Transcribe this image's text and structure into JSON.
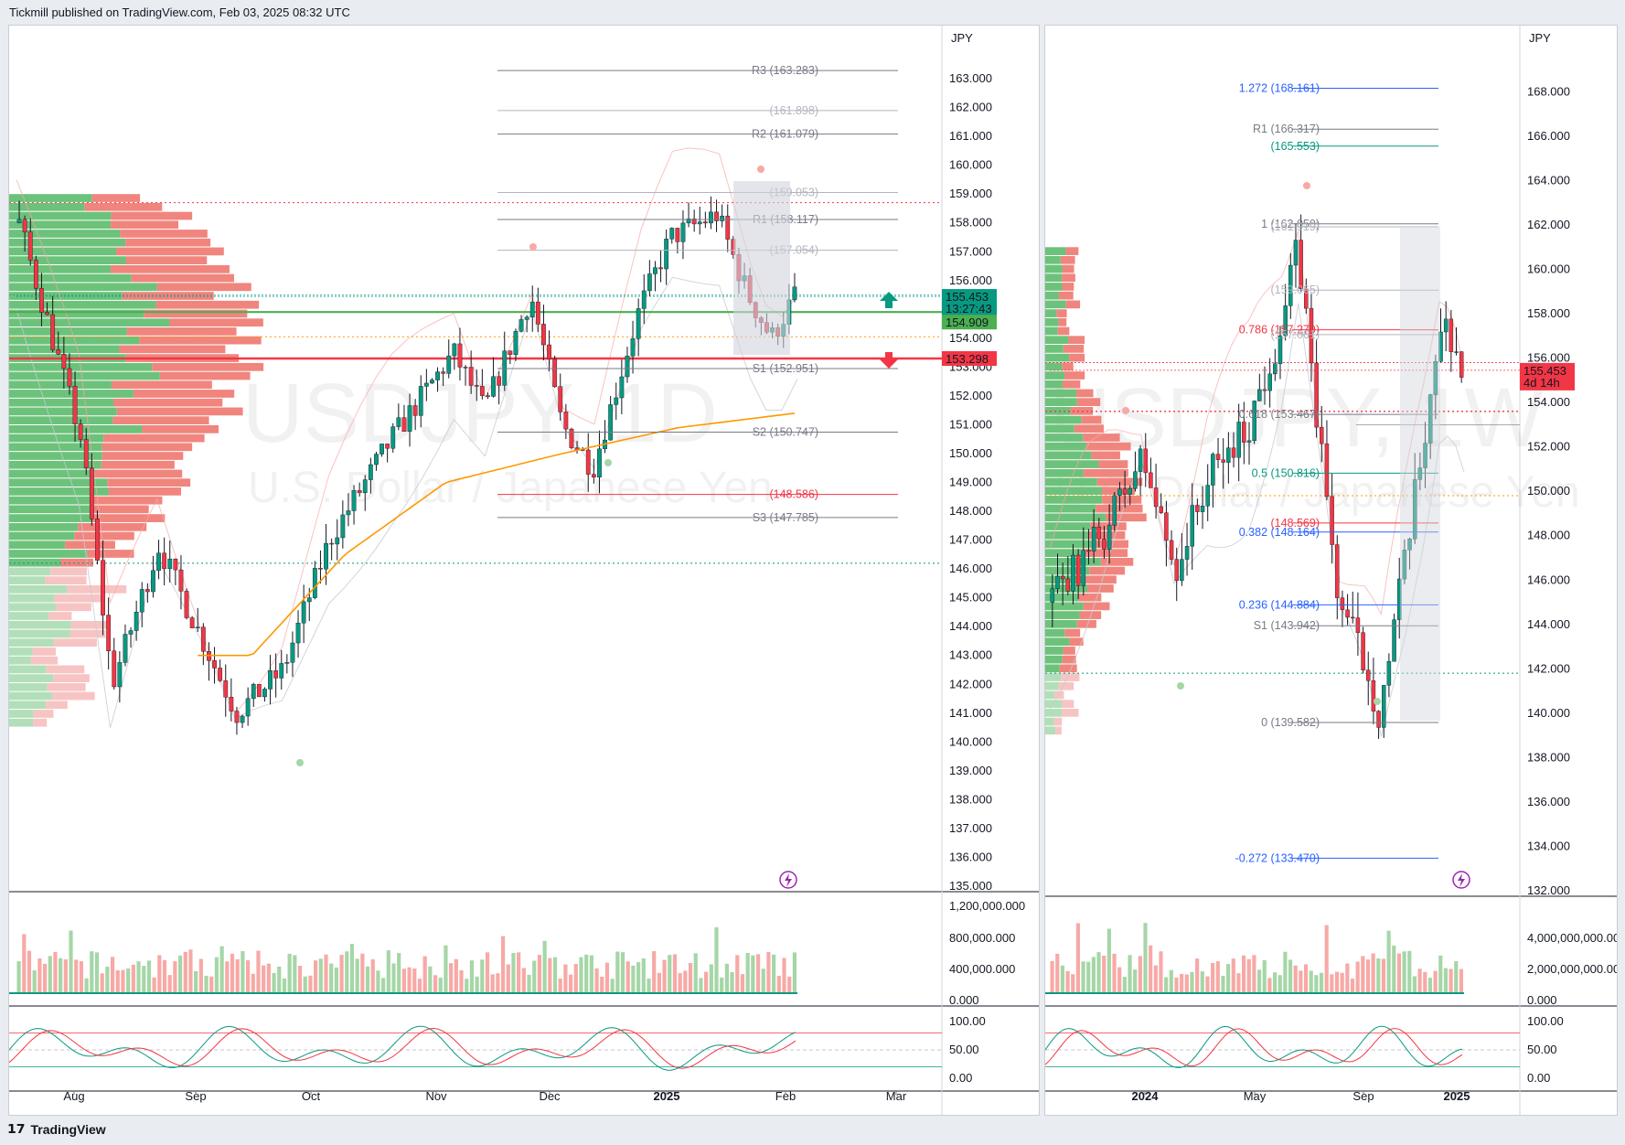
{
  "header": {
    "published": "Tickmill published on TradingView.com, Feb 03, 2025 08:32 UTC"
  },
  "footer": {
    "brand": "TradingView"
  },
  "left_chart": {
    "symbol_watermark": "USDJPY, 1D",
    "name_watermark": "U.S. Dollar / Japanese Yen",
    "currency": "JPY",
    "price_ticks": [
      "163.000",
      "162.000",
      "161.000",
      "160.000",
      "159.000",
      "158.000",
      "157.000",
      "156.000",
      "155.000",
      "154.000",
      "153.000",
      "152.000",
      "151.000",
      "150.000",
      "149.000",
      "148.000",
      "147.000",
      "146.000",
      "145.000",
      "144.000",
      "143.000",
      "142.000",
      "141.000",
      "140.000",
      "139.000",
      "138.000",
      "137.000",
      "136.000",
      "135.000"
    ],
    "volume_ticks": [
      "1,200,000.000",
      "800,000.000",
      "400,000.000",
      "0.000"
    ],
    "osc_ticks": [
      "100.00",
      "50.00",
      "0.00"
    ],
    "time_ticks": [
      "Aug",
      "Sep",
      "Oct",
      "Nov",
      "Dec",
      "2025",
      "Feb",
      "Mar"
    ],
    "price_badges": {
      "last": "155.453",
      "countdown": "13:27:43",
      "level_green": "154.909",
      "level_red": "153.298"
    },
    "levels": [
      {
        "label": "R3 (163.283)",
        "price": 163.283,
        "color": "#787b86"
      },
      {
        "label": "(161.898)",
        "price": 161.898,
        "color": "#b2b5be"
      },
      {
        "label": "R2 (161.079)",
        "price": 161.079,
        "color": "#787b86"
      },
      {
        "label": "(159.053)",
        "price": 159.053,
        "color": "#b2b5be"
      },
      {
        "label": "R1 (158.117)",
        "price": 158.117,
        "color": "#787b86"
      },
      {
        "label": "(157.054)",
        "price": 157.054,
        "color": "#b2b5be"
      },
      {
        "label": "S1 (152.951)",
        "price": 152.951,
        "color": "#787b86"
      },
      {
        "label": "S2 (150.747)",
        "price": 150.747,
        "color": "#787b86"
      },
      {
        "label": "(148.586)",
        "price": 148.586,
        "color": "#f23645"
      },
      {
        "label": "S3 (147.785)",
        "price": 147.785,
        "color": "#787b86"
      }
    ]
  },
  "right_chart": {
    "symbol_watermark": "USDJPY, 1W",
    "name_watermark": "U.S. Dollar / Japanese Yen",
    "currency": "JPY",
    "price_ticks": [
      "168.000",
      "166.000",
      "164.000",
      "162.000",
      "160.000",
      "158.000",
      "156.000",
      "154.000",
      "152.000",
      "150.000",
      "148.000",
      "146.000",
      "144.000",
      "142.000",
      "140.000",
      "138.000",
      "136.000",
      "134.000",
      "132.000"
    ],
    "volume_ticks": [
      "4,000,000,000.000",
      "2,000,000,000.000",
      "0.000"
    ],
    "osc_ticks": [
      "100.00",
      "50.00",
      "0.00"
    ],
    "time_ticks": [
      "2024",
      "May",
      "Sep",
      "2025"
    ],
    "price_badges": {
      "last": "155.453",
      "countdown": "4d 14h"
    },
    "levels": [
      {
        "label": "1.272 (168.161)",
        "price": 168.161,
        "color": "#2962ff"
      },
      {
        "label": "R1 (166.317)",
        "price": 166.317,
        "color": "#787b86"
      },
      {
        "label": "(165.553)",
        "price": 165.553,
        "color": "#089981"
      },
      {
        "label": "1 (162.050)",
        "price": 162.05,
        "color": "#787b86"
      },
      {
        "label": "(161.919)",
        "price": 161.919,
        "color": "#b2b5be"
      },
      {
        "label": "(159.065)",
        "price": 159.065,
        "color": "#b2b5be"
      },
      {
        "label": "0.786 (157.279)",
        "price": 157.279,
        "color": "#f23645"
      },
      {
        "label": "(157.061)",
        "price": 157.061,
        "color": "#b2b5be"
      },
      {
        "label": "0.618 (153.467)",
        "price": 153.467,
        "color": "#787b86"
      },
      {
        "label": "0.5 (150.816)",
        "price": 150.816,
        "color": "#089981"
      },
      {
        "label": "(148.569)",
        "price": 148.569,
        "color": "#f23645"
      },
      {
        "label": "0.382 (148.164)",
        "price": 148.164,
        "color": "#2962ff"
      },
      {
        "label": "0.236 (144.884)",
        "price": 144.884,
        "color": "#2962ff"
      },
      {
        "label": "S1 (143.942)",
        "price": 143.942,
        "color": "#787b86"
      },
      {
        "label": "0 (139.582)",
        "price": 139.582,
        "color": "#787b86"
      },
      {
        "label": "-0.272 (133.470)",
        "price": 133.47,
        "color": "#2962ff"
      }
    ]
  },
  "chart_data": [
    {
      "type": "line",
      "title": "USDJPY, 1D",
      "subtitle": "U.S. Dollar / Japanese Yen",
      "ylabel": "JPY",
      "ylim": [
        135,
        163.8
      ],
      "x": [
        "Aug",
        "Sep",
        "Oct",
        "Nov",
        "Dec",
        "2025",
        "Feb"
      ],
      "series": [
        {
          "values": [
            149.5,
            144.0,
            143.3,
            151.8,
            149.6,
            157.3,
            155.45
          ]
        },
        {
          "values": [
            146.5,
            146.8,
            147.2,
            149.2,
            149.8,
            151.4,
            151.4
          ]
        }
      ],
      "last_price": 155.453,
      "support_resistance": [
        154.909,
        153.298
      ],
      "volume_range": [
        0,
        1200000
      ],
      "oscillator_range": [
        0,
        100
      ]
    },
    {
      "type": "line",
      "title": "USDJPY, 1W",
      "subtitle": "U.S. Dollar / Japanese Yen",
      "ylabel": "JPY",
      "ylim": [
        132,
        169.5
      ],
      "x": [
        "2024",
        "May",
        "Sep",
        "2025"
      ],
      "series": [
        {
          "values": [
            144.0,
            155.0,
            143.0,
            155.45
          ]
        }
      ],
      "fibonacci": [
        {
          "ratio": "1.272",
          "price": 168.161
        },
        {
          "ratio": "1",
          "price": 162.05
        },
        {
          "ratio": "0.786",
          "price": 157.279
        },
        {
          "ratio": "0.618",
          "price": 153.467
        },
        {
          "ratio": "0.5",
          "price": 150.816
        },
        {
          "ratio": "0.382",
          "price": 148.164
        },
        {
          "ratio": "0.236",
          "price": 144.884
        },
        {
          "ratio": "0",
          "price": 139.582
        },
        {
          "ratio": "-0.272",
          "price": 133.47
        }
      ],
      "last_price": 155.453,
      "volume_range": [
        0,
        4000000000
      ],
      "oscillator_range": [
        0,
        100
      ]
    }
  ]
}
